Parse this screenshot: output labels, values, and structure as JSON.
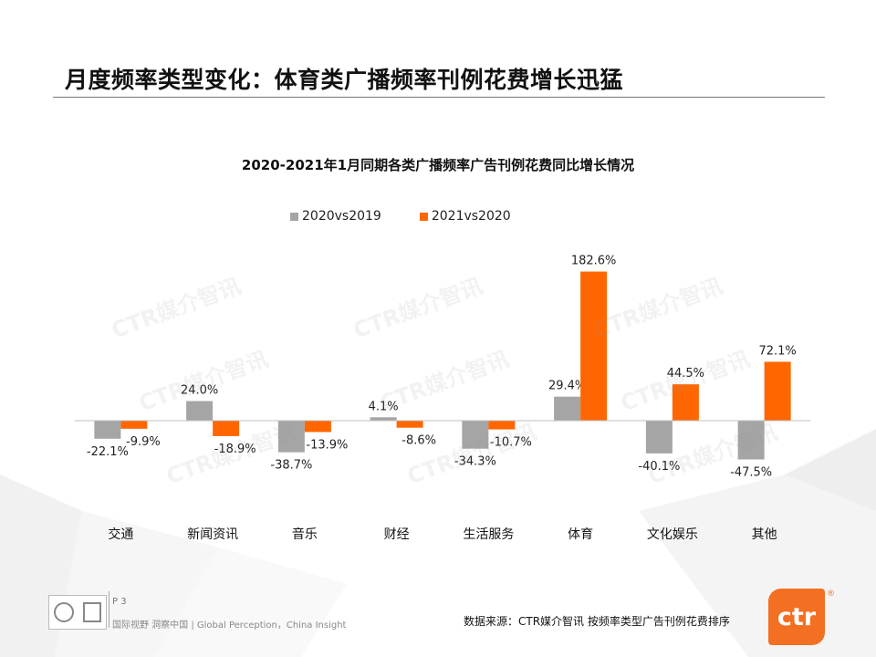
{
  "page": {
    "title": "月度频率类型变化：体育类广播频率刊例花费增长迅猛",
    "page_number": "P 3",
    "tagline": "国际视野 洞察中国 | Global Perception，China Insight",
    "source": "数据来源：CTR媒介智讯   按频率类型广告刊例花费排序",
    "logo_text": "ctr",
    "watermark": "CTR媒介智讯"
  },
  "chart_data": {
    "type": "bar",
    "title": "2020-2021年1月同期各类广播频率广告刊例花费同比增长情况",
    "categories": [
      "交通",
      "新闻资讯",
      "音乐",
      "财经",
      "生活服务",
      "体育",
      "文化娱乐",
      "其他"
    ],
    "series": [
      {
        "name": "2020vs2019",
        "color": "#a5a5a5",
        "values": [
          -22.1,
          24.0,
          -38.7,
          4.1,
          -34.3,
          29.4,
          -40.1,
          -47.5
        ]
      },
      {
        "name": "2021vs2020",
        "color": "#ff6600",
        "values": [
          -9.9,
          -18.9,
          -13.9,
          -8.6,
          -10.7,
          182.6,
          44.5,
          72.1
        ]
      }
    ],
    "value_suffix": "%",
    "legend_position": "top",
    "grid": false
  }
}
